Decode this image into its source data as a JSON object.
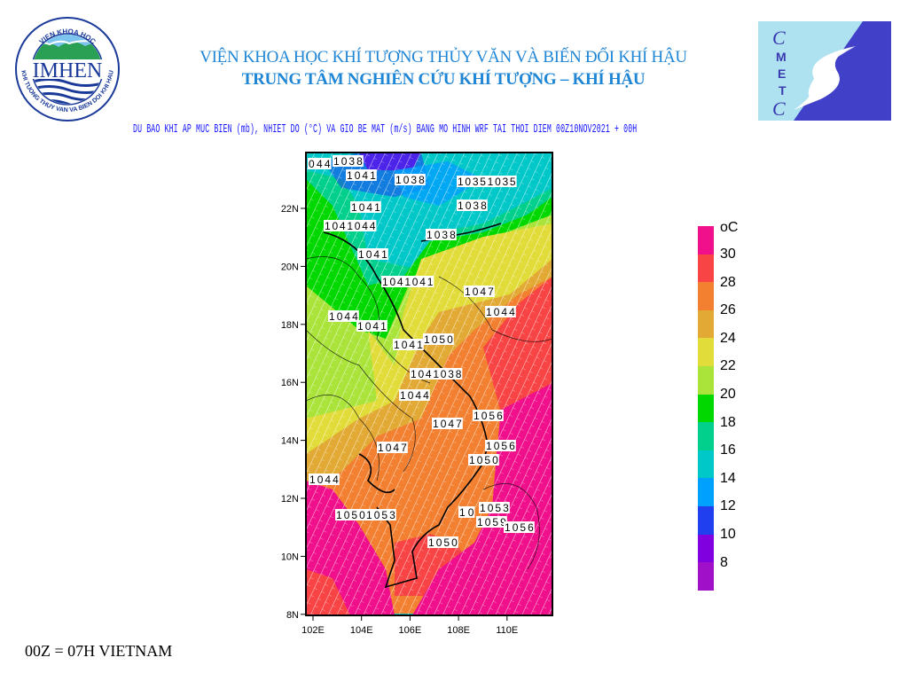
{
  "header": {
    "institute": "VIỆN KHOA HỌC KHÍ TƯỢNG THỦY VĂN VÀ BIẾN ĐỔI KHÍ HẬU",
    "center": "TRUNG TÂM NGHIÊN CỨU KHÍ TƯỢNG – KHÍ HẬU",
    "subtitle": "DU BAO KHI AP MUC BIEN (mb), NHIET DO (°C) VA GIO BE MAT (m/s) BANG MO HINH WRF TAI THOI DIEM 00Z10NOV2021 + 00H"
  },
  "logos": {
    "left": {
      "main": "IMHEN",
      "ring_top": "VIEN KHOA HOC",
      "ring_bottom": "KHI TUONG THUY VAN VA BIEN DOI KHI HAU"
    },
    "right": {
      "letters": "CMETC"
    }
  },
  "map": {
    "lat_ticks": [
      "22N",
      "20N",
      "18N",
      "16N",
      "14N",
      "12N",
      "10N",
      "8N"
    ],
    "lon_ticks": [
      "102E",
      "104E",
      "106E",
      "108E",
      "110E"
    ],
    "isobar_labels": [
      "044",
      "1038",
      "1041",
      "1038",
      "10351035",
      "1041",
      "1038",
      "1041044",
      "1038",
      "1041",
      "1041041",
      "1047",
      "1044",
      "1044",
      "1041",
      "1041",
      "1050",
      "1041038",
      "1044",
      "1056",
      "1047",
      "1047",
      "1056",
      "1050",
      "1044",
      "1050",
      "1053",
      "10",
      "1053",
      "1059",
      "1056",
      "1050"
    ]
  },
  "colorbar": {
    "unit": "oC",
    "labels": [
      "30",
      "28",
      "26",
      "24",
      "22",
      "20",
      "18",
      "16",
      "14",
      "12",
      "10",
      "8"
    ],
    "colors": [
      "#f0108c",
      "#f84444",
      "#f28030",
      "#e2aa34",
      "#e2dc3a",
      "#aae43a",
      "#00d800",
      "#00d08c",
      "#00c8c8",
      "#00a0ff",
      "#2040f0",
      "#8000e0",
      "#a010c8"
    ]
  },
  "footer": "00Z = 07H VIETNAM"
}
